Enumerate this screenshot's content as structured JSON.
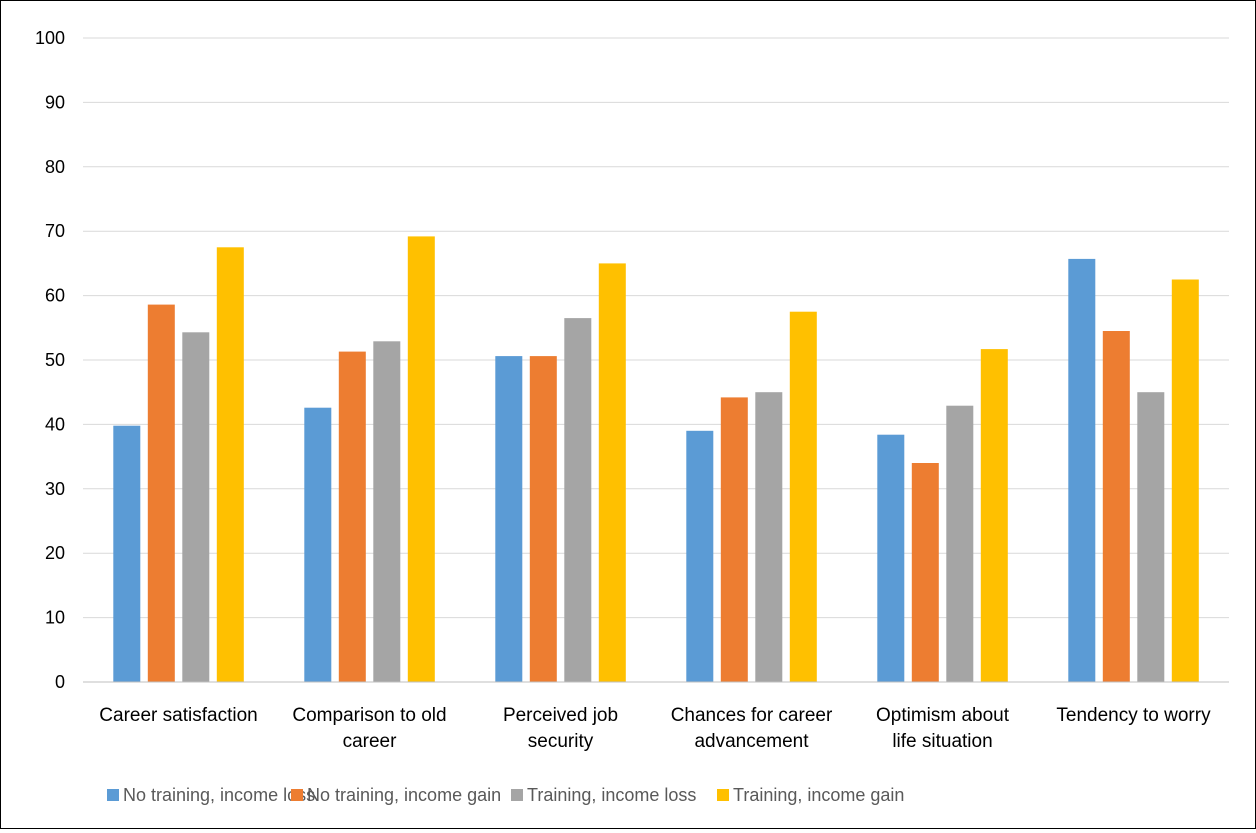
{
  "chart_data": {
    "type": "bar",
    "title": "",
    "xlabel": "",
    "ylabel": "",
    "ylim": [
      0,
      100
    ],
    "yticks": [
      "0",
      "10",
      "20",
      "30",
      "40",
      "50",
      "60",
      "70",
      "80",
      "90",
      "100"
    ],
    "grid": true,
    "legend_position": "bottom",
    "categories": [
      [
        "Career satisfaction"
      ],
      [
        "Comparison to old",
        "career"
      ],
      [
        "Perceived job",
        "security"
      ],
      [
        "Chances for career",
        "advancement"
      ],
      [
        "Optimism about",
        "life situation"
      ],
      [
        "Tendency to worry"
      ]
    ],
    "series": [
      {
        "name": "No training, income loss",
        "color": "#5B9BD5",
        "values": [
          39.8,
          42.6,
          50.6,
          39.0,
          38.4,
          65.7
        ]
      },
      {
        "name": "No training, income gain",
        "color": "#ED7D31",
        "values": [
          58.6,
          51.3,
          50.6,
          44.2,
          34.0,
          54.5
        ]
      },
      {
        "name": "Training, income loss",
        "color": "#A5A5A5",
        "values": [
          54.3,
          52.9,
          56.5,
          45.0,
          42.9,
          45.0
        ]
      },
      {
        "name": "Training, income gain",
        "color": "#FFC000",
        "values": [
          67.5,
          69.2,
          65.0,
          57.5,
          51.7,
          62.5
        ]
      }
    ]
  }
}
